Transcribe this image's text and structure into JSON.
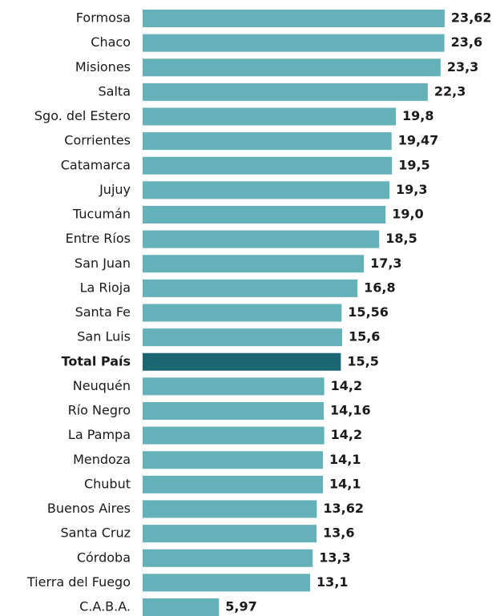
{
  "chart_data": {
    "type": "hbar",
    "categories": [
      "Formosa",
      "Chaco",
      "Misiones",
      "Salta",
      "Sgo. del Estero",
      "Corrientes",
      "Catamarca",
      "Jujuy",
      "Tucumán",
      "Entre Ríos",
      "San Juan",
      "La Rioja",
      "Santa Fe",
      "San Luis",
      "Total País",
      "Neuquén",
      "Río Negro",
      "La Pampa",
      "Mendoza",
      "Chubut",
      "Buenos Aires",
      "Santa Cruz",
      "Córdoba",
      "Tierra del Fuego",
      "C.A.B.A."
    ],
    "values": [
      23.62,
      23.6,
      23.3,
      22.3,
      19.8,
      19.47,
      19.5,
      19.3,
      19.0,
      18.5,
      17.3,
      16.8,
      15.56,
      15.6,
      15.5,
      14.2,
      14.16,
      14.2,
      14.1,
      14.1,
      13.62,
      13.6,
      13.3,
      13.1,
      5.97
    ],
    "value_labels": [
      "23,62",
      "23,6",
      "23,3",
      "22,3",
      "19,8",
      "19,47",
      "19,5",
      "19,3",
      "19,0",
      "18,5",
      "17,3",
      "16,8",
      "15,56",
      "15,6",
      "15,5",
      "14,2",
      "14,16",
      "14,2",
      "14,1",
      "14,1",
      "13,62",
      "13,6",
      "13,3",
      "13,1",
      "5,97"
    ],
    "color": "#64b1ba",
    "highlight": "Total País",
    "highlight_color": "#1b6673",
    "xlim": [
      0,
      24
    ]
  }
}
